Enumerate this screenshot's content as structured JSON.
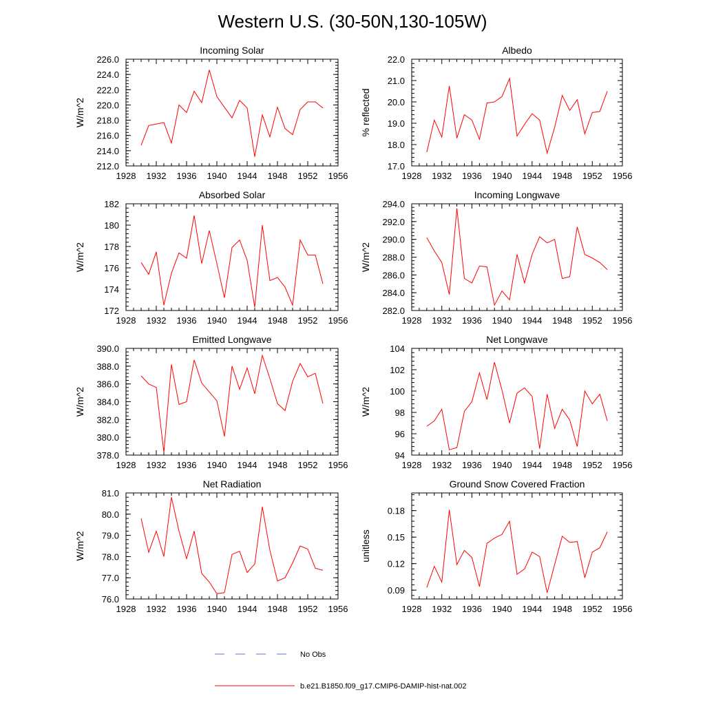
{
  "figure": {
    "title": "Western U.S. (30-50N,130-105W)"
  },
  "legend": {
    "obs_label": "No Obs",
    "obs_color": "#5a6fd6",
    "model_label": "b.e21.B1850.f09_g17.CMIP6-DAMIP-hist-nat.002",
    "model_color": "#ff0000"
  },
  "chart_data": [
    {
      "type": "line",
      "title": "Incoming Solar",
      "ylabel": "W/m^2",
      "xlim": [
        1928,
        1956
      ],
      "ylim": [
        212,
        226
      ],
      "xticks": [
        1928,
        1932,
        1936,
        1940,
        1944,
        1948,
        1952,
        1956
      ],
      "yticks": [
        "212.0",
        "214.0",
        "216.0",
        "218.0",
        "220.0",
        "222.0",
        "224.0",
        "226.0"
      ],
      "x": [
        1930,
        1931,
        1932,
        1933,
        1934,
        1935,
        1936,
        1937,
        1938,
        1939,
        1940,
        1941,
        1942,
        1943,
        1944,
        1945,
        1946,
        1947,
        1948,
        1949,
        1950,
        1951,
        1952,
        1953,
        1954
      ],
      "series": [
        {
          "color": "#ff0000",
          "values": [
            214.7,
            217.3,
            217.5,
            217.7,
            215.0,
            220.0,
            219.0,
            221.8,
            220.3,
            224.6,
            221.1,
            219.7,
            218.3,
            220.6,
            219.6,
            213.2,
            218.7,
            215.8,
            219.7,
            216.9,
            216.1,
            219.4,
            220.4,
            220.4,
            219.6
          ]
        }
      ]
    },
    {
      "type": "line",
      "title": "Albedo",
      "ylabel": "% reflected",
      "xlim": [
        1928,
        1956
      ],
      "ylim": [
        17,
        22
      ],
      "xticks": [
        1928,
        1932,
        1936,
        1940,
        1944,
        1948,
        1952,
        1956
      ],
      "yticks": [
        "17.0",
        "18.0",
        "19.0",
        "20.0",
        "21.0",
        "22.0"
      ],
      "x": [
        1930,
        1931,
        1932,
        1933,
        1934,
        1935,
        1936,
        1937,
        1938,
        1939,
        1940,
        1941,
        1942,
        1943,
        1944,
        1945,
        1946,
        1947,
        1948,
        1949,
        1950,
        1951,
        1952,
        1953,
        1954
      ],
      "series": [
        {
          "color": "#ff0000",
          "values": [
            17.65,
            19.15,
            18.35,
            20.75,
            18.3,
            19.4,
            19.15,
            18.25,
            19.95,
            20.0,
            20.25,
            21.1,
            18.4,
            18.95,
            19.45,
            19.15,
            17.6,
            18.8,
            20.3,
            19.6,
            20.1,
            18.5,
            19.5,
            19.55,
            20.5
          ]
        }
      ]
    },
    {
      "type": "line",
      "title": "Absorbed Solar",
      "ylabel": "W/m^2",
      "xlim": [
        1928,
        1956
      ],
      "ylim": [
        172,
        182
      ],
      "xticks": [
        1928,
        1932,
        1936,
        1940,
        1944,
        1948,
        1952,
        1956
      ],
      "yticks": [
        "172",
        "174",
        "176",
        "178",
        "180",
        "182"
      ],
      "x": [
        1930,
        1931,
        1932,
        1933,
        1934,
        1935,
        1936,
        1937,
        1938,
        1939,
        1940,
        1941,
        1942,
        1943,
        1944,
        1945,
        1946,
        1947,
        1948,
        1949,
        1950,
        1951,
        1952,
        1953,
        1954
      ],
      "series": [
        {
          "color": "#ff0000",
          "values": [
            176.5,
            175.4,
            177.5,
            172.5,
            175.5,
            177.4,
            176.9,
            180.9,
            176.4,
            179.5,
            176.4,
            173.2,
            177.9,
            178.6,
            176.7,
            172.3,
            180.0,
            174.8,
            175.1,
            174.2,
            172.5,
            178.6,
            177.2,
            177.2,
            174.5
          ]
        }
      ]
    },
    {
      "type": "line",
      "title": "Incoming Longwave",
      "ylabel": "W/m^2",
      "xlim": [
        1928,
        1956
      ],
      "ylim": [
        282,
        294
      ],
      "xticks": [
        1928,
        1932,
        1936,
        1940,
        1944,
        1948,
        1952,
        1956
      ],
      "yticks": [
        "282.0",
        "284.0",
        "286.0",
        "288.0",
        "290.0",
        "292.0",
        "294.0"
      ],
      "x": [
        1930,
        1931,
        1932,
        1933,
        1934,
        1935,
        1936,
        1937,
        1938,
        1939,
        1940,
        1941,
        1942,
        1943,
        1944,
        1945,
        1946,
        1947,
        1948,
        1949,
        1950,
        1951,
        1952,
        1953,
        1954
      ],
      "series": [
        {
          "color": "#ff0000",
          "values": [
            290.2,
            288.7,
            287.4,
            283.8,
            293.5,
            285.6,
            285.1,
            287.0,
            286.9,
            282.6,
            284.2,
            283.2,
            288.3,
            285.1,
            288.3,
            290.3,
            289.6,
            290.0,
            285.6,
            285.8,
            291.4,
            288.3,
            287.9,
            287.4,
            286.6
          ]
        }
      ]
    },
    {
      "type": "line",
      "title": "Emitted Longwave",
      "ylabel": "W/m^2",
      "xlim": [
        1928,
        1956
      ],
      "ylim": [
        378,
        390
      ],
      "xticks": [
        1928,
        1932,
        1936,
        1940,
        1944,
        1948,
        1952,
        1956
      ],
      "yticks": [
        "378.0",
        "380.0",
        "382.0",
        "384.0",
        "386.0",
        "388.0",
        "390.0"
      ],
      "x": [
        1930,
        1931,
        1932,
        1933,
        1934,
        1935,
        1936,
        1937,
        1938,
        1939,
        1940,
        1941,
        1942,
        1943,
        1944,
        1945,
        1946,
        1947,
        1948,
        1949,
        1950,
        1951,
        1952,
        1953,
        1954
      ],
      "series": [
        {
          "color": "#ff0000",
          "values": [
            386.9,
            386.0,
            385.6,
            378.3,
            388.2,
            383.7,
            384.0,
            388.7,
            386.1,
            385.1,
            384.1,
            380.1,
            388.0,
            385.4,
            387.8,
            384.9,
            389.2,
            386.6,
            383.8,
            383.0,
            386.3,
            388.3,
            386.8,
            387.2,
            383.8
          ]
        }
      ]
    },
    {
      "type": "line",
      "title": "Net Longwave",
      "ylabel": "W/m^2",
      "xlim": [
        1928,
        1956
      ],
      "ylim": [
        94,
        104
      ],
      "xticks": [
        1928,
        1932,
        1936,
        1940,
        1944,
        1948,
        1952,
        1956
      ],
      "yticks": [
        "94",
        "96",
        "98",
        "100",
        "102",
        "104"
      ],
      "x": [
        1930,
        1931,
        1932,
        1933,
        1934,
        1935,
        1936,
        1937,
        1938,
        1939,
        1940,
        1941,
        1942,
        1943,
        1944,
        1945,
        1946,
        1947,
        1948,
        1949,
        1950,
        1951,
        1952,
        1953,
        1954
      ],
      "series": [
        {
          "color": "#ff0000",
          "values": [
            96.7,
            97.2,
            98.3,
            94.5,
            94.7,
            98.1,
            99.0,
            101.7,
            99.2,
            102.7,
            100.1,
            97.0,
            99.8,
            100.3,
            99.5,
            94.6,
            99.7,
            96.5,
            98.3,
            97.3,
            94.8,
            100.0,
            98.8,
            99.7,
            97.2
          ]
        }
      ]
    },
    {
      "type": "line",
      "title": "Net Radiation",
      "ylabel": "W/m^2",
      "xlim": [
        1928,
        1956
      ],
      "ylim": [
        76,
        81
      ],
      "xticks": [
        1928,
        1932,
        1936,
        1940,
        1944,
        1948,
        1952,
        1956
      ],
      "yticks": [
        "76.0",
        "77.0",
        "78.0",
        "79.0",
        "80.0",
        "81.0"
      ],
      "x": [
        1930,
        1931,
        1932,
        1933,
        1934,
        1935,
        1936,
        1937,
        1938,
        1939,
        1940,
        1941,
        1942,
        1943,
        1944,
        1945,
        1946,
        1947,
        1948,
        1949,
        1950,
        1951,
        1952,
        1953,
        1954
      ],
      "series": [
        {
          "color": "#ff0000",
          "values": [
            79.8,
            78.2,
            79.2,
            78.0,
            80.8,
            79.2,
            77.9,
            79.2,
            77.2,
            76.8,
            76.25,
            76.3,
            78.1,
            78.25,
            77.25,
            77.65,
            80.35,
            78.3,
            76.85,
            77.0,
            77.7,
            78.5,
            78.35,
            77.45,
            77.35
          ]
        }
      ]
    },
    {
      "type": "line",
      "title": "Ground Snow Covered Fraction",
      "ylabel": "unitless",
      "xlim": [
        1928,
        1956
      ],
      "ylim": [
        0.08,
        0.2
      ],
      "xticks": [
        1928,
        1932,
        1936,
        1940,
        1944,
        1948,
        1952,
        1956
      ],
      "yticks": [
        "0.09",
        "0.12",
        "0.15",
        "0.18"
      ],
      "ytick_values": [
        0.09,
        0.12,
        0.15,
        0.18
      ],
      "x": [
        1930,
        1931,
        1932,
        1933,
        1934,
        1935,
        1936,
        1937,
        1938,
        1939,
        1940,
        1941,
        1942,
        1943,
        1944,
        1945,
        1946,
        1947,
        1948,
        1949,
        1950,
        1951,
        1952,
        1953,
        1954
      ],
      "series": [
        {
          "color": "#ff0000",
          "values": [
            0.093,
            0.117,
            0.099,
            0.181,
            0.119,
            0.135,
            0.127,
            0.094,
            0.143,
            0.149,
            0.153,
            0.168,
            0.108,
            0.114,
            0.133,
            0.128,
            0.087,
            0.119,
            0.151,
            0.144,
            0.145,
            0.104,
            0.133,
            0.138,
            0.156
          ]
        }
      ]
    }
  ]
}
